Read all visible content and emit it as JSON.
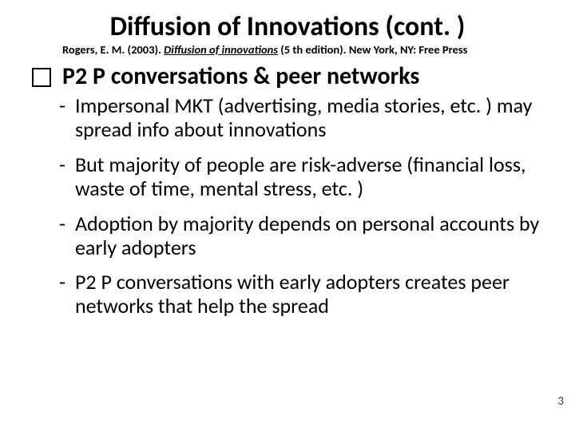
{
  "title": "Diffusion of Innovations (cont. )",
  "citation": {
    "author": "Rogers, E. M. (2003). ",
    "book": "Diffusion of innovations",
    "rest": " (5 th edition). New York, NY: Free Press"
  },
  "section_heading": "P2 P conversations & peer networks",
  "bullets": [
    "Impersonal MKT (advertising, media stories, etc. ) may spread info about innovations",
    "But majority of people are risk-adverse (financial loss, waste of time, mental stress, etc. )",
    "Adoption by majority depends on personal accounts by early adopters",
    "P2 P conversations with early adopters creates peer networks that help the spread"
  ],
  "page_number": "3",
  "colors": {
    "background": "#ffffff",
    "text": "#000000",
    "pagenum": "#444444"
  },
  "typography": {
    "title_fontsize": 34,
    "citation_fontsize": 14.5,
    "section_fontsize": 30,
    "bullet_fontsize": 26,
    "pagenum_fontsize": 15,
    "font_family": "Calibri"
  }
}
